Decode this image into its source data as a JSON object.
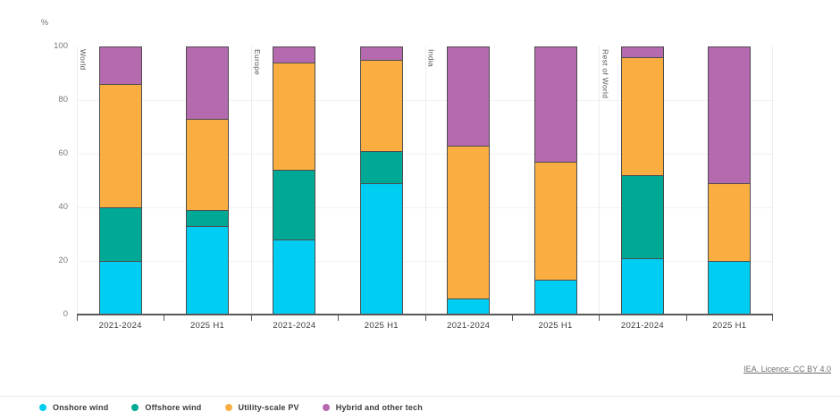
{
  "chart": {
    "unit_label": "%",
    "source_link": "IEA. Licence: CC BY 4.0"
  },
  "chart_data": {
    "type": "bar",
    "stacked": true,
    "orientation": "vertical",
    "title": "",
    "ylabel": "%",
    "ylim": [
      0,
      100
    ],
    "yticks": [
      0,
      20,
      40,
      60,
      80,
      100
    ],
    "grid": "horizontal",
    "legend_position": "bottom",
    "regions": [
      "World",
      "Europe",
      "India",
      "Rest of World"
    ],
    "x_labels": [
      "2021-2024",
      "2025 H1",
      "2021-2024",
      "2025 H1",
      "2021-2024",
      "2025 H1",
      "2021-2024",
      "2025 H1"
    ],
    "series": [
      {
        "name": "Onshore wind",
        "color": "#00CDF2",
        "values": [
          20,
          33,
          28,
          49,
          6,
          13,
          21,
          20
        ]
      },
      {
        "name": "Offshore wind",
        "color": "#00A896",
        "values": [
          20,
          6,
          26,
          12,
          0,
          0,
          31,
          0
        ]
      },
      {
        "name": "Utility-scale PV",
        "color": "#FAAE41",
        "values": [
          46,
          34,
          40,
          34,
          57,
          44,
          44,
          29
        ]
      },
      {
        "name": "Hybrid and other tech",
        "color": "#B569AE",
        "values": [
          14,
          27,
          6,
          5,
          37,
          43,
          4,
          51
        ]
      }
    ]
  }
}
